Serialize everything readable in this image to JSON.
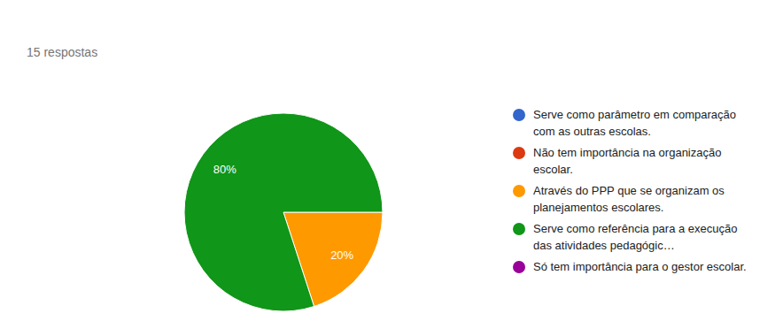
{
  "chart_data": {
    "type": "pie",
    "subtitle": "15 respostas",
    "categories": [
      "Serve como parâmetro em comparação com as outras escolas.",
      "Não tem importância na organização escolar.",
      "Através do PPP que se organizam os planejamentos escolares.",
      "Serve como referência para a execução das atividades pedagógic…",
      "Só tem importância para o gestor escolar."
    ],
    "values": [
      0,
      0,
      20,
      80,
      0
    ],
    "value_labels": [
      null,
      null,
      "20%",
      "80%",
      null
    ],
    "colors": [
      "#3366cc",
      "#dc3912",
      "#ff9900",
      "#109618",
      "#990099"
    ],
    "data_labels": true,
    "legend": "right"
  }
}
